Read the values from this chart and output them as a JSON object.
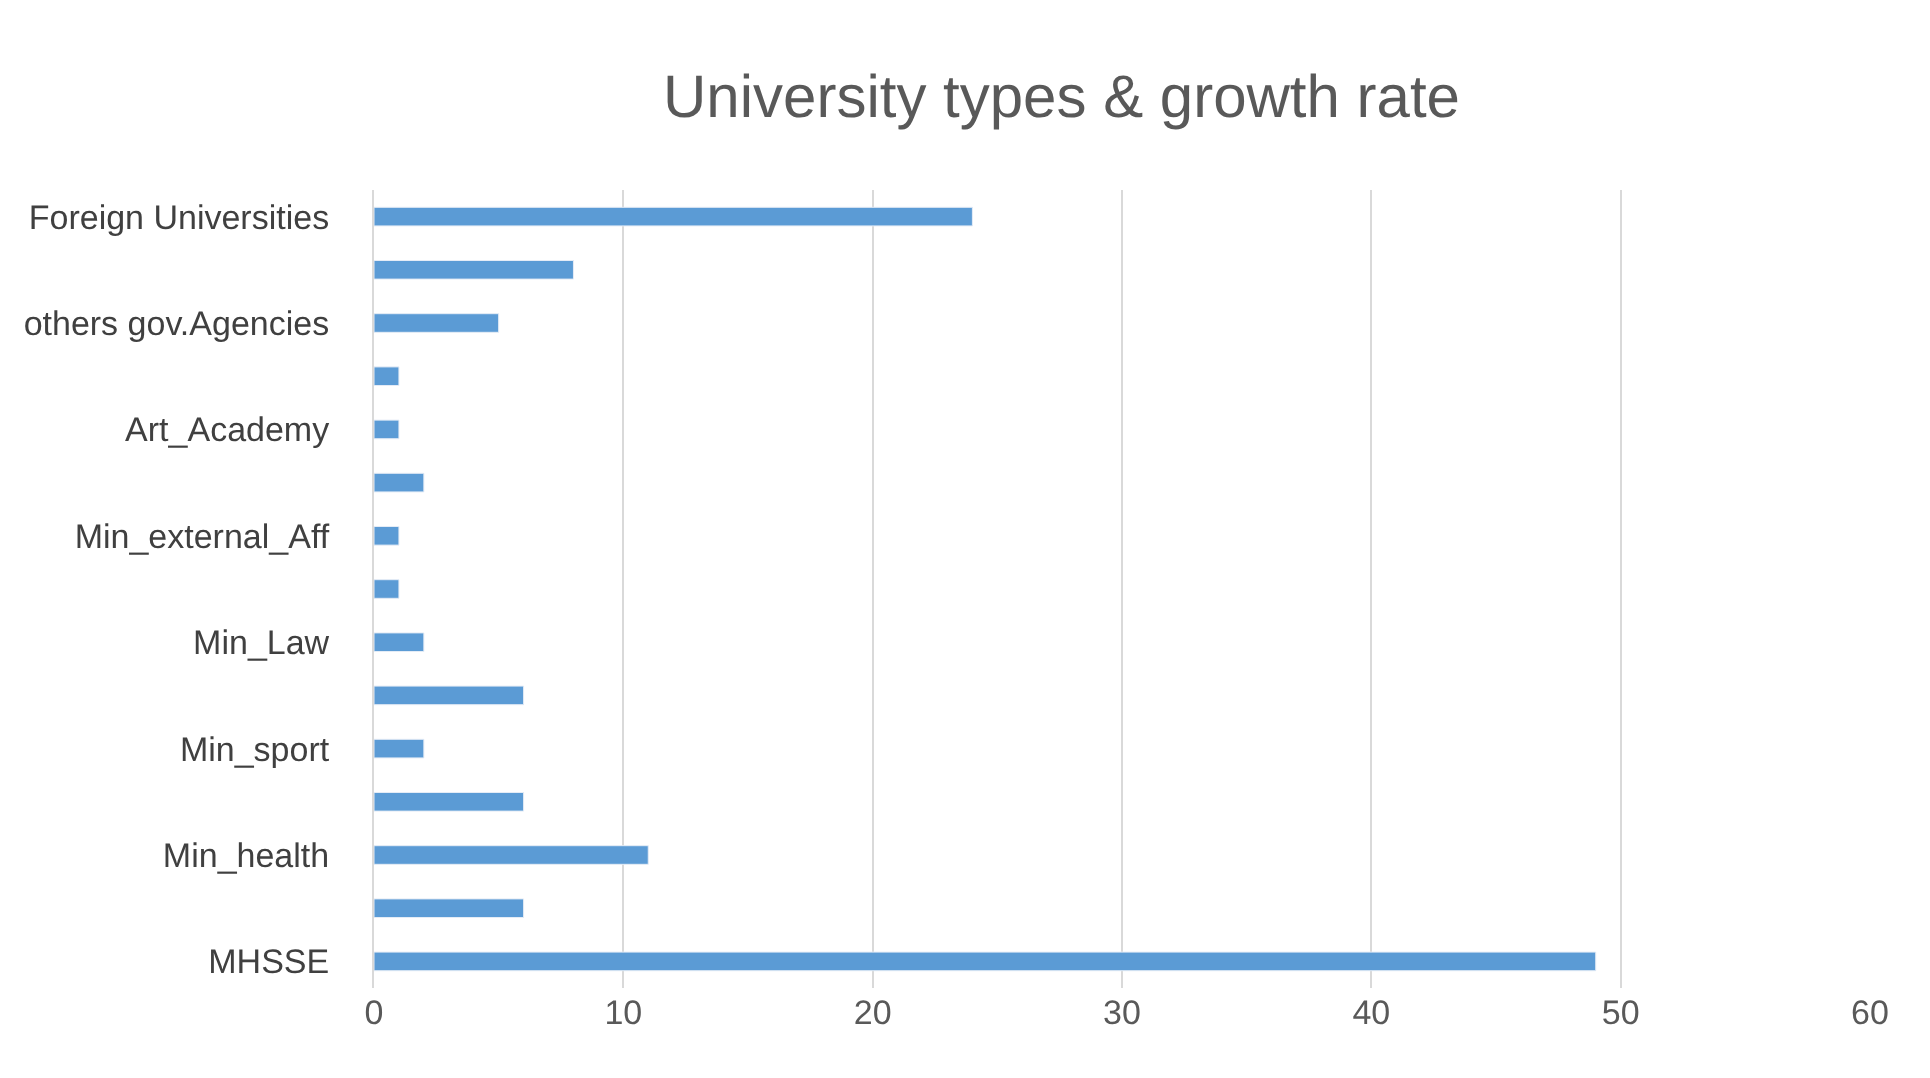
{
  "chart_data": {
    "type": "bar",
    "orientation": "horizontal",
    "title": "University types & growth rate",
    "categories": [
      "Foreign Universities",
      null,
      "others gov.Agencies",
      null,
      "Art_Academy",
      null,
      "Min_external_Aff",
      null,
      "Min_Law",
      null,
      "Min_sport",
      null,
      "Min_health",
      null,
      "MHSSE"
    ],
    "values": [
      24,
      8,
      5,
      1,
      1,
      2,
      1,
      1,
      2,
      6,
      2,
      6,
      11,
      6,
      49
    ],
    "color": "#5b9bd5",
    "xlim": [
      0,
      60
    ],
    "xticks": [
      0,
      10,
      20,
      30,
      40,
      50,
      60
    ],
    "grid": "x"
  }
}
